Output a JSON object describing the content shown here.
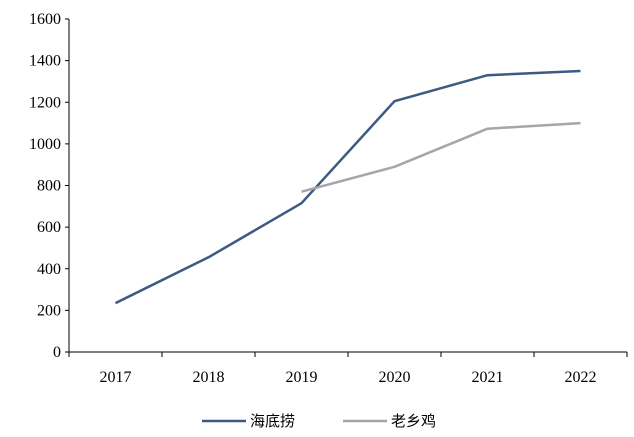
{
  "chart_data": {
    "type": "line",
    "title": "",
    "xlabel": "",
    "ylabel": "",
    "categories": [
      "2017",
      "2018",
      "2019",
      "2020",
      "2021",
      "2022"
    ],
    "ylim": [
      0,
      1600
    ],
    "yticks": [
      0,
      200,
      400,
      600,
      800,
      1000,
      1200,
      1400,
      1600
    ],
    "grid": false,
    "legend_position": "bottom",
    "series": [
      {
        "name": "海底捞",
        "color": "#3c5a82",
        "values": [
          235,
          455,
          715,
          1205,
          1330,
          1350
        ]
      },
      {
        "name": "老乡鸡",
        "color": "#a6a6a6",
        "values": [
          null,
          null,
          770,
          890,
          1073,
          1100
        ]
      }
    ]
  }
}
